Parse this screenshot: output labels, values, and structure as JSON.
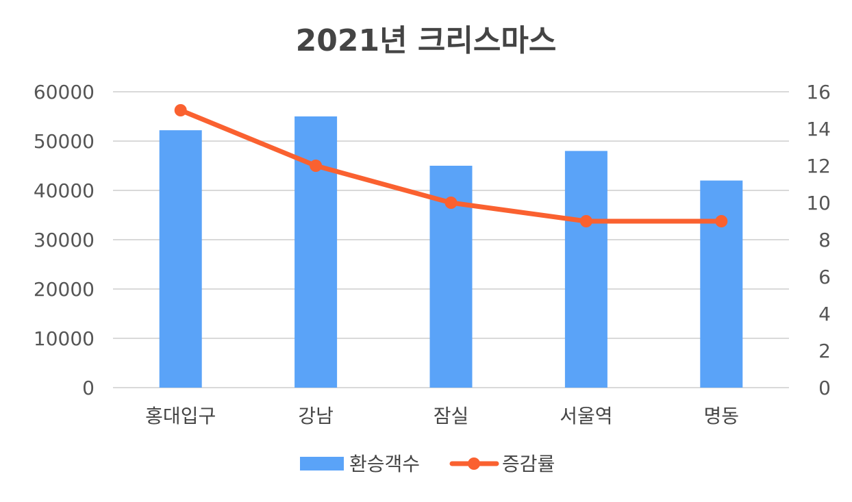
{
  "chart_data": {
    "type": "bar",
    "title": "2021년 크리스마스",
    "categories": [
      "홍대입구",
      "강남",
      "잠실",
      "서울역",
      "명동"
    ],
    "series": [
      {
        "name": "환승객수",
        "type": "bar",
        "axis": "left",
        "values": [
          52200,
          55000,
          45000,
          48000,
          42000
        ]
      },
      {
        "name": "증감률",
        "type": "line",
        "axis": "right",
        "values": [
          15,
          12,
          10,
          9,
          9
        ]
      }
    ],
    "y_left": {
      "min": 0,
      "max": 60000,
      "ticks": [
        "0",
        "10000",
        "20000",
        "30000",
        "40000",
        "50000",
        "60000"
      ]
    },
    "y_right": {
      "min": 0,
      "max": 16,
      "ticks": [
        "0",
        "2",
        "4",
        "6",
        "8",
        "10",
        "12",
        "14",
        "16"
      ]
    },
    "grid": true,
    "legend_position": "bottom",
    "colors": {
      "bar": "#5aa3f8",
      "line": "#fa6130",
      "grid": "#d9d9d9"
    }
  }
}
